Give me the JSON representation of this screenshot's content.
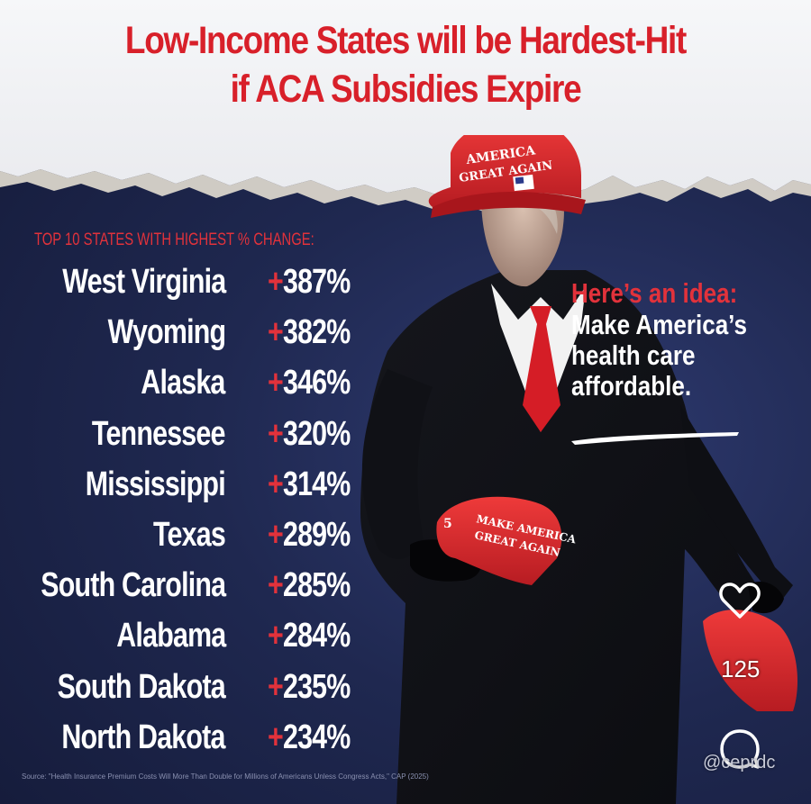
{
  "title": {
    "line1": "Low-Income States will be Hardest-Hit",
    "line2": "if ACA Subsidies Expire"
  },
  "list": {
    "heading": "TOP 10 STATES WITH HIGHEST % CHANGE:",
    "rows": [
      {
        "state": "West Virginia",
        "change": "387%"
      },
      {
        "state": "Wyoming",
        "change": "382%"
      },
      {
        "state": "Alaska",
        "change": "346%"
      },
      {
        "state": "Tennessee",
        "change": "320%"
      },
      {
        "state": "Mississippi",
        "change": "314%"
      },
      {
        "state": "Texas",
        "change": "289%"
      },
      {
        "state": "South Carolina",
        "change": "285%"
      },
      {
        "state": "Alabama",
        "change": "284%"
      },
      {
        "state": "South Dakota",
        "change": "235%"
      },
      {
        "state": "North Dakota",
        "change": "234%"
      }
    ],
    "sign": "+"
  },
  "tagline": {
    "highlight": "Here’s an idea:",
    "body": "Make America’s\nhealth care\naffordable."
  },
  "hat_text": {
    "line1": "AMERICA",
    "line2": "GREAT AGAIN",
    "held_line1": "MAKE AMERICA",
    "held_line2": "GREAT AGAIN",
    "left_mark": "5"
  },
  "source": "Source: \"Health Insurance Premium Costs Will More Than Double for Millions of Americans Unless Congress Acts,\" CAP (2025)",
  "overlay": {
    "like_count": "125",
    "handle": "@ceprdc"
  },
  "colors": {
    "red": "#e2323b",
    "title_red": "#d8202a",
    "navy": "#1f2850",
    "paper": "#f3f3f5"
  }
}
